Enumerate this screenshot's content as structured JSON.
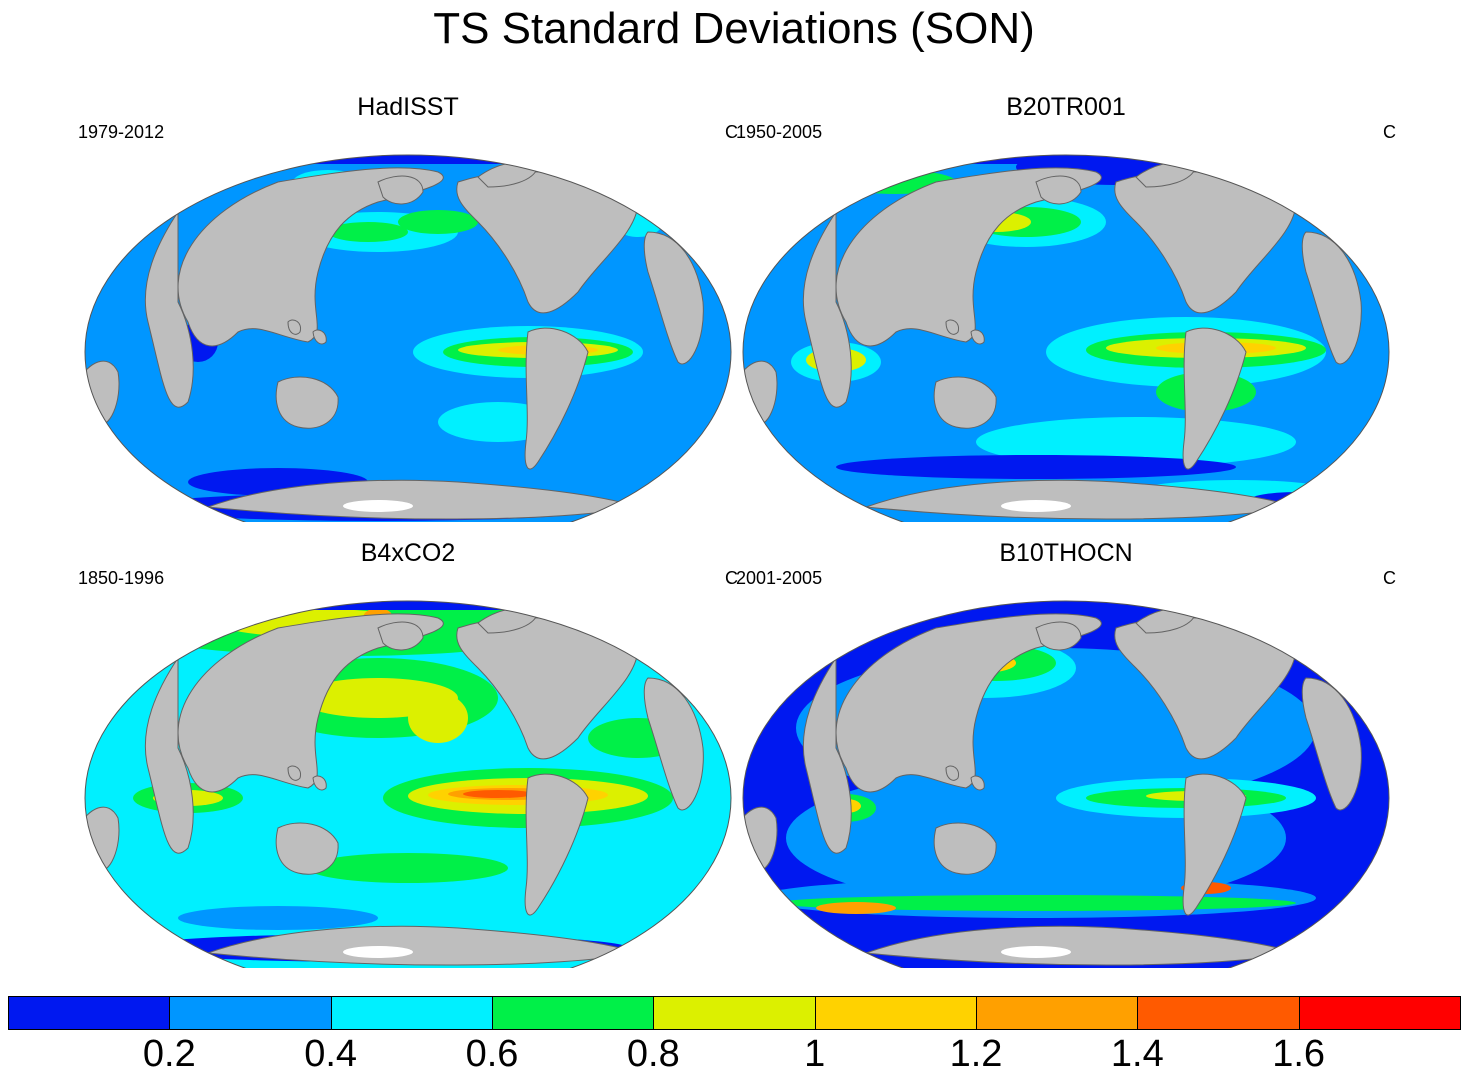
{
  "title": "TS Standard Deviations (SON)",
  "panels": [
    {
      "title": "HadISST",
      "left": "1979-2012",
      "right": "C"
    },
    {
      "title": "B20TR001",
      "left": "1950-2005",
      "right": "C"
    },
    {
      "title": "B4xCO2",
      "left": "1850-1996",
      "right": "C"
    },
    {
      "title": "B10THOCN",
      "left": "2001-2005",
      "right": "C"
    }
  ],
  "colorbar": {
    "colors": [
      "#0018f0",
      "#0096ff",
      "#00f0ff",
      "#00f048",
      "#dcf000",
      "#ffd200",
      "#ffa000",
      "#ff5a00",
      "#ff0000"
    ],
    "labels": [
      "0.2",
      "0.4",
      "0.6",
      "0.8",
      "1",
      "1.2",
      "1.4",
      "1.6"
    ]
  },
  "colors": {
    "land": "#bebebe",
    "ice": "#ffffff",
    "coast": "#646464"
  }
}
